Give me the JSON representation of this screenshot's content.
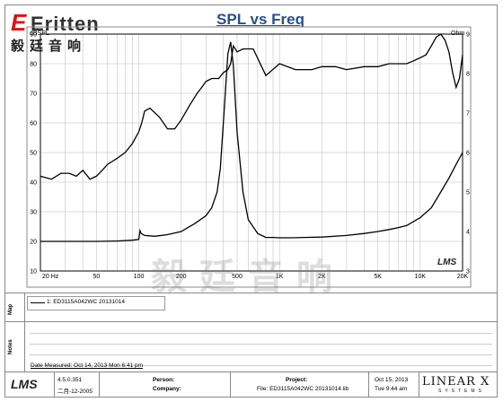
{
  "brand": {
    "logo_text": "Eritten",
    "logo_cn": "毅廷音响"
  },
  "watermark": "毅廷音响",
  "lms_mark": "LMS",
  "chart_data": {
    "type": "line",
    "title": "SPL vs Freq",
    "ylabel_left": "dBSPL",
    "ylabel_right": "Ohm",
    "x_scale": "log",
    "xlim": [
      20,
      20000
    ],
    "ylim_left": [
      10,
      90
    ],
    "ylim_right": [
      3,
      9
    ],
    "x_ticks": [
      {
        "v": 20,
        "label": "20 Hz"
      },
      {
        "v": 50,
        "label": "50"
      },
      {
        "v": 100,
        "label": "100"
      },
      {
        "v": 200,
        "label": "200"
      },
      {
        "v": 500,
        "label": "500"
      },
      {
        "v": 1000,
        "label": "1K"
      },
      {
        "v": 2000,
        "label": "2K"
      },
      {
        "v": 5000,
        "label": "5K"
      },
      {
        "v": 10000,
        "label": "10K"
      },
      {
        "v": 20000,
        "label": "20K"
      }
    ],
    "y_ticks_left": [
      10,
      20,
      30,
      40,
      50,
      60,
      70,
      80,
      90
    ],
    "y_ticks_right": [
      3,
      4,
      5,
      6,
      7,
      8,
      9
    ],
    "grid": true,
    "series": [
      {
        "axis": "left",
        "x": [
          20,
          24,
          28,
          32,
          36,
          40,
          45,
          50,
          55,
          60,
          70,
          80,
          90,
          100,
          105,
          110,
          120,
          140,
          160,
          180,
          200,
          230,
          260,
          280,
          300,
          330,
          370,
          400,
          430,
          450,
          470,
          500,
          550,
          650,
          800,
          1000,
          1300,
          1700,
          2000,
          2500,
          3000,
          4000,
          5000,
          6000,
          7000,
          8000,
          9000,
          10000,
          11000,
          12000,
          13000,
          14000,
          15000,
          16000,
          17000,
          18000,
          19000,
          20000
        ],
        "values": [
          42,
          41,
          43,
          43,
          42,
          44,
          41,
          42,
          44,
          46,
          48,
          50,
          53,
          57,
          60,
          64,
          65,
          62,
          58,
          58,
          61,
          66,
          70,
          72,
          74,
          75,
          75,
          77,
          78,
          80,
          86,
          84,
          85,
          85,
          76,
          80,
          78,
          78,
          79,
          79,
          78,
          79,
          79,
          80,
          80,
          80,
          81,
          82,
          83,
          86,
          89,
          90,
          88,
          84,
          77,
          72,
          75,
          83
        ],
        "name": ""
      },
      {
        "axis": "right",
        "x": [
          20,
          30,
          50,
          70,
          90,
          100,
          102,
          104,
          110,
          130,
          160,
          200,
          250,
          300,
          330,
          360,
          380,
          400,
          430,
          450,
          470,
          500,
          550,
          600,
          700,
          800,
          900,
          1000,
          1200,
          1500,
          2000,
          3000,
          4000,
          5000,
          6000,
          7000,
          8000,
          10000,
          12000,
          14000,
          16000,
          18000,
          20000
        ],
        "values": [
          3.75,
          3.75,
          3.75,
          3.76,
          3.78,
          3.8,
          4.02,
          3.95,
          3.9,
          3.88,
          3.92,
          4.0,
          4.2,
          4.4,
          4.6,
          5.0,
          5.6,
          6.8,
          8.5,
          8.8,
          8.2,
          6.5,
          5.0,
          4.3,
          3.95,
          3.85,
          3.85,
          3.84,
          3.84,
          3.85,
          3.86,
          3.9,
          3.95,
          4.0,
          4.05,
          4.1,
          4.15,
          4.35,
          4.6,
          5.0,
          5.35,
          5.7,
          6.0
        ],
        "name": ""
      }
    ]
  },
  "map": {
    "label": "Map",
    "entry": "1: ED3115A042WC   20131014"
  },
  "notes": {
    "label": "Notes",
    "date_measured": "Date Measured: Oct 14, 2013 Mon 6:41 pm"
  },
  "footer": {
    "lms_logo": "LMS",
    "version": "4.5.0.351",
    "version_date": "二月-12-2005",
    "person_label": "Person:",
    "company_label": "Company:",
    "project_label": "Project:",
    "file_text": "File: ED3115A042WC 20131014.lib",
    "date": "Oct 15, 2013",
    "time": "Tue  9:44 am",
    "brand": "LINEAR X",
    "brand_sub": "SYSTEMS"
  }
}
